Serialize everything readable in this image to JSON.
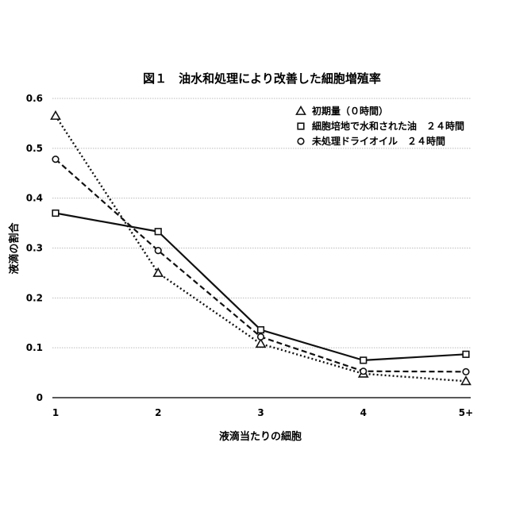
{
  "chart_data": {
    "type": "line",
    "title": "図１　油水和処理により改善した細胞増殖率",
    "xlabel": "液滴当たりの細胞",
    "ylabel": "液滴の割合",
    "categories": [
      "1",
      "2",
      "3",
      "4",
      "5+"
    ],
    "ylim": [
      0,
      0.6
    ],
    "yticks": [
      "0",
      "0.1",
      "0.2",
      "0.3",
      "0.4",
      "0.5",
      "0.6"
    ],
    "grid": true,
    "legend_position": "top-right",
    "series": [
      {
        "name": "初期量（０時間）",
        "marker": "triangle",
        "line_style": "dotted",
        "values": [
          0.565,
          0.25,
          0.108,
          0.048,
          0.033
        ]
      },
      {
        "name": "細胞培地で水和された油　２４時間",
        "marker": "square",
        "line_style": "solid",
        "values": [
          0.37,
          0.333,
          0.136,
          0.075,
          0.087
        ]
      },
      {
        "name": "未処理ドライオイル　２４時間",
        "marker": "circle",
        "line_style": "dashed",
        "values": [
          0.478,
          0.295,
          0.122,
          0.053,
          0.052
        ]
      }
    ],
    "colors": {
      "line": "#111111",
      "grid": "#bbbbbb"
    }
  }
}
